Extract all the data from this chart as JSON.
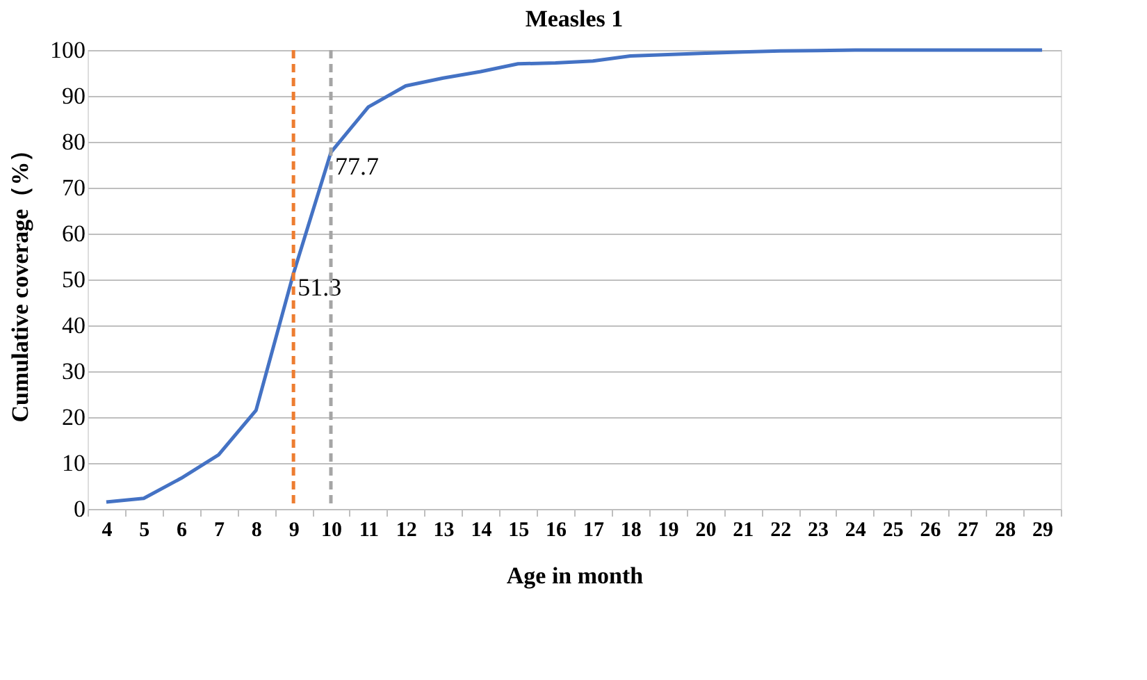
{
  "chart_data": {
    "type": "line",
    "title": "Measles 1",
    "xlabel": "Age in month",
    "ylabel": "Cumulative coverage（%）",
    "categories": [
      "4",
      "5",
      "6",
      "7",
      "8",
      "9",
      "10",
      "11",
      "12",
      "13",
      "14",
      "15",
      "16",
      "17",
      "18",
      "19",
      "20",
      "21",
      "22",
      "23",
      "24",
      "25",
      "26",
      "27",
      "28",
      "29"
    ],
    "series": [
      {
        "color": "#4472c4",
        "values": [
          1.5,
          2.3,
          6.7,
          11.8,
          21.5,
          51.3,
          77.7,
          87.6,
          92.2,
          93.9,
          95.3,
          97,
          97.2,
          97.6,
          98.7,
          99,
          99.3,
          99.6,
          99.8,
          99.9,
          100,
          100,
          100,
          100,
          100,
          100
        ],
        "value_labels": [
          null,
          null,
          null,
          null,
          null,
          "51.3",
          "77.7",
          null,
          null,
          null,
          null,
          null,
          null,
          null,
          null,
          null,
          null,
          null,
          null,
          null,
          null,
          null,
          null,
          null,
          null,
          null
        ]
      }
    ],
    "ylim": [
      0,
      100
    ],
    "yticks": [
      0,
      10,
      20,
      30,
      40,
      50,
      60,
      70,
      80,
      90,
      100
    ],
    "grid": "y",
    "marker": "none",
    "line_style": "solid",
    "ref_lines": [
      {
        "axis": "x",
        "value": "9",
        "color": "#ed7d31",
        "line_style": "dashed"
      },
      {
        "axis": "x",
        "value": "10",
        "color": "#a5a5a5",
        "line_style": "dashed"
      }
    ]
  }
}
